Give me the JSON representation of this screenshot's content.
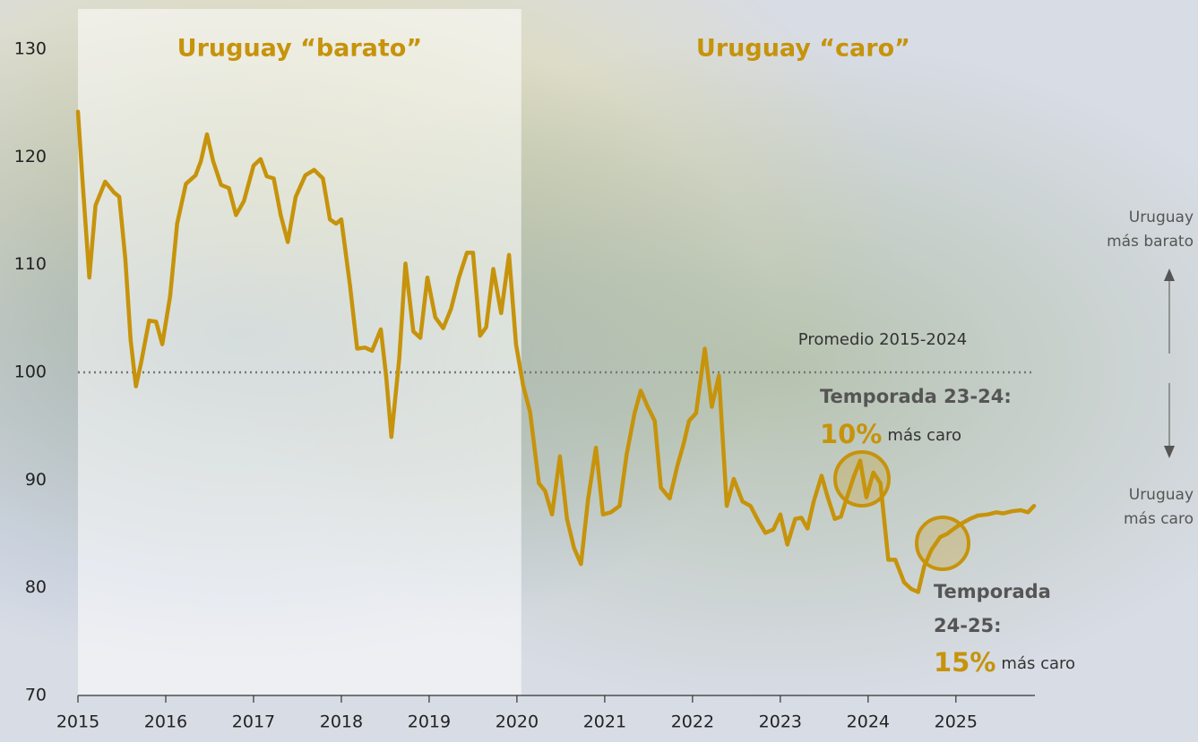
{
  "chart_data": {
    "type": "line",
    "x": [
      2015.0,
      2015.05,
      2015.13,
      2015.2,
      2015.31,
      2015.41,
      2015.47,
      2015.54,
      2015.6,
      2015.66,
      2015.72,
      2015.81,
      2015.89,
      2015.96,
      2016.05,
      2016.13,
      2016.23,
      2016.34,
      2016.4,
      2016.47,
      2016.54,
      2016.63,
      2016.72,
      2016.8,
      2016.89,
      2017.0,
      2017.08,
      2017.15,
      2017.23,
      2017.31,
      2017.39,
      2017.48,
      2017.59,
      2017.69,
      2017.79,
      2017.87,
      2017.94,
      2018.0,
      2018.1,
      2018.18,
      2018.27,
      2018.35,
      2018.45,
      2018.51,
      2018.57,
      2018.66,
      2018.73,
      2018.82,
      2018.9,
      2018.98,
      2019.07,
      2019.16,
      2019.25,
      2019.34,
      2019.43,
      2019.5,
      2019.58,
      2019.65,
      2019.73,
      2019.82,
      2019.91,
      2019.99,
      2020.07,
      2020.15,
      2020.25,
      2020.32,
      2020.4,
      2020.49,
      2020.57,
      2020.65,
      2020.73,
      2020.81,
      2020.9,
      2020.98,
      2021.07,
      2021.17,
      2021.25,
      2021.34,
      2021.41,
      2021.49,
      2021.57,
      2021.64,
      2021.74,
      2021.83,
      2021.9,
      2021.96,
      2022.04,
      2022.14,
      2022.22,
      2022.3,
      2022.39,
      2022.47,
      2022.57,
      2022.66,
      2022.75,
      2022.83,
      2022.92,
      2023.0,
      2023.08,
      2023.17,
      2023.24,
      2023.31,
      2023.38,
      2023.47,
      2023.54,
      2023.62,
      2023.69,
      2023.76,
      2023.84,
      2023.91,
      2023.98,
      2024.06,
      2024.14,
      2024.23,
      2024.31,
      2024.41,
      2024.49,
      2024.57,
      2024.64,
      2024.72,
      2024.82,
      2024.9,
      2024.98,
      2025.07,
      2025.16,
      2025.25,
      2025.36,
      2025.46,
      2025.54,
      2025.64,
      2025.74,
      2025.82,
      2025.89
    ],
    "values": [
      124.2,
      118.0,
      108.8,
      115.5,
      117.7,
      116.7,
      116.3,
      110.5,
      103.0,
      98.7,
      100.9,
      104.8,
      104.7,
      102.6,
      107.1,
      113.8,
      117.5,
      118.3,
      119.6,
      122.1,
      119.6,
      117.4,
      117.1,
      114.6,
      115.9,
      119.2,
      119.8,
      118.2,
      118.0,
      114.6,
      112.1,
      116.3,
      118.3,
      118.8,
      118.0,
      114.2,
      113.8,
      114.2,
      108.0,
      102.2,
      102.3,
      102.0,
      104.0,
      99.7,
      94.0,
      101.3,
      110.1,
      103.8,
      103.2,
      108.8,
      105.1,
      104.1,
      105.9,
      108.8,
      111.1,
      111.1,
      103.4,
      104.2,
      109.6,
      105.5,
      110.9,
      102.6,
      98.8,
      96.3,
      89.7,
      89.0,
      86.8,
      92.2,
      86.4,
      83.7,
      82.2,
      88.2,
      93.0,
      86.8,
      87.0,
      87.6,
      92.4,
      96.2,
      98.3,
      96.8,
      95.5,
      89.3,
      88.3,
      91.4,
      93.4,
      95.5,
      96.2,
      102.2,
      96.8,
      99.7,
      87.6,
      90.1,
      88.0,
      87.6,
      86.2,
      85.1,
      85.4,
      86.8,
      84.0,
      86.4,
      86.5,
      85.5,
      88.0,
      90.4,
      88.4,
      86.4,
      86.6,
      88.4,
      90.4,
      91.8,
      88.4,
      90.7,
      89.7,
      82.6,
      82.6,
      80.5,
      79.9,
      79.6,
      82.0,
      83.5,
      84.7,
      85.0,
      85.5,
      86.0,
      86.4,
      86.7,
      86.8,
      87.0,
      86.9,
      87.1,
      87.2,
      87.0,
      87.6
    ],
    "color": "#c6930b",
    "xlim": [
      2015,
      2025.9
    ],
    "xticks": [
      2015,
      2016,
      2017,
      2018,
      2019,
      2020,
      2021,
      2022,
      2023,
      2024,
      2025
    ],
    "ylim": [
      70,
      130
    ],
    "yticks": [
      70,
      80,
      90,
      100,
      110,
      120,
      130
    ],
    "grid": false,
    "reference_line": {
      "value": 100,
      "label": "Promedio 2015-2024"
    },
    "regions": [
      {
        "label": "Uruguay “barato”",
        "xlim": [
          2015,
          2020.05
        ],
        "shaded": true
      },
      {
        "label": "Uruguay “caro”",
        "xlim": [
          2020.05,
          2025.9
        ],
        "shaded": false
      }
    ],
    "annotations": [
      {
        "title": [
          "Temporada 23-24:"
        ],
        "pct": "10%",
        "text": "más caro"
      },
      {
        "title": [
          "Temporada",
          "24-25:"
        ],
        "pct": "15%",
        "text": "más caro"
      }
    ],
    "side_labels": {
      "top": [
        "Uruguay",
        "más barato"
      ],
      "bottom": [
        "Uruguay",
        "más caro"
      ]
    }
  }
}
